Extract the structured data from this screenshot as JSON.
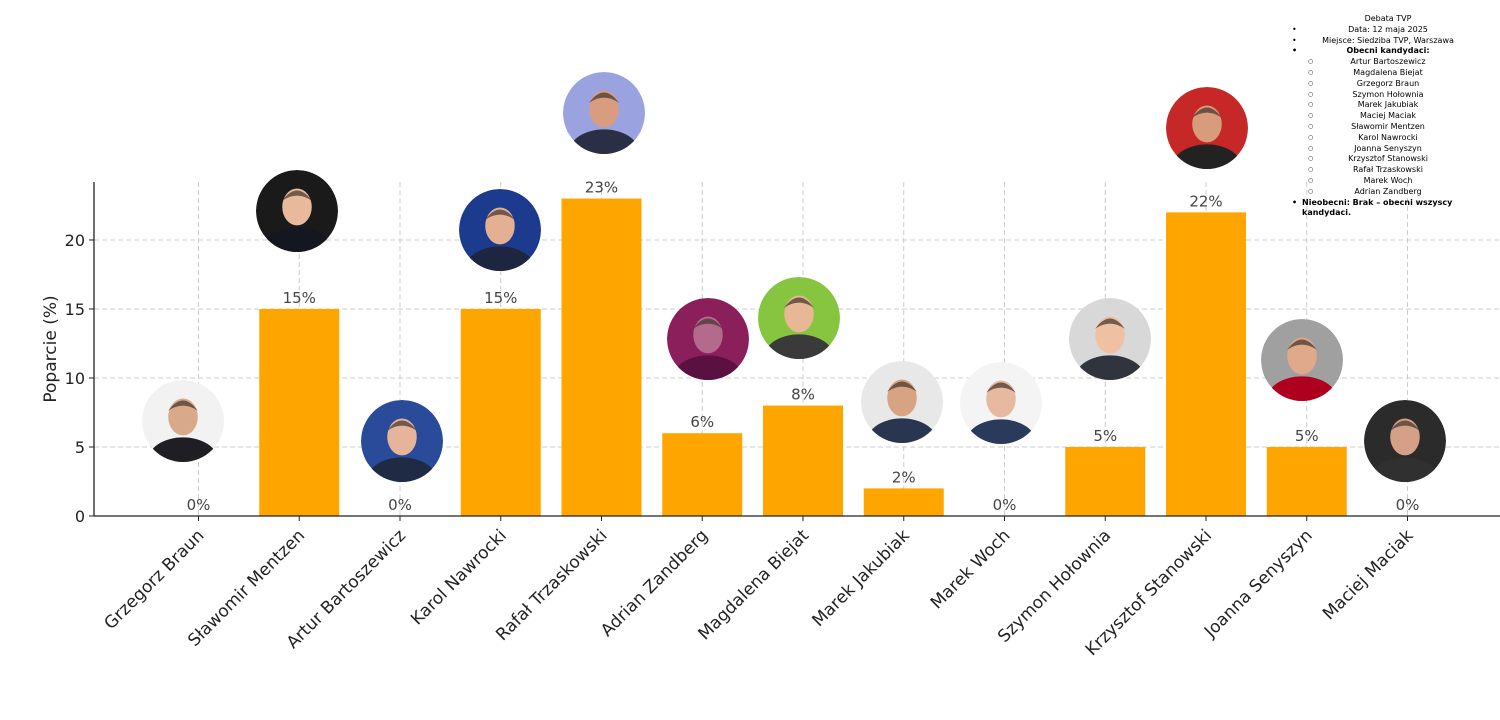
{
  "info_box": {
    "title": "Debata TVP",
    "date": "Data: 12 maja 2025",
    "place": "Miejsce: Siedziba TVP, Warszawa",
    "present_label": "Obecni kandydaci:",
    "present": [
      "Artur Bartoszewicz",
      "Magdalena Biejat",
      "Grzegorz Braun",
      "Szymon Hołownia",
      "Marek Jakubiak",
      "Maciej Maciak",
      "Sławomir Mentzen",
      "Karol Nawrocki",
      "Joanna Senyszyn",
      "Krzysztof Stanowski",
      "Rafał Trzaskowski",
      "Marek Woch",
      "Adrian Zandberg"
    ],
    "absent": "Nieobecni: Brak – obecni wszyscy kandydaci."
  },
  "chart_data": {
    "type": "bar",
    "categories": [
      "Grzegorz Braun",
      "Sławomir Mentzen",
      "Artur Bartoszewicz",
      "Karol Nawrocki",
      "Rafał Trzaskowski",
      "Adrian Zandberg",
      "Magdalena Biejat",
      "Marek Jakubiak",
      "Marek Woch",
      "Szymon Hołownia",
      "Krzysztof Stanowski",
      "Joanna Senyszyn",
      "Maciej Maciak"
    ],
    "values": [
      0,
      15,
      0,
      15,
      23,
      6,
      8,
      2,
      0,
      5,
      22,
      5,
      0
    ],
    "value_labels": [
      "0%",
      "15%",
      "0%",
      "15%",
      "23%",
      "6%",
      "8%",
      "2%",
      "0%",
      "5%",
      "22%",
      "5%",
      "0%"
    ],
    "ylabel": "Poparcie (%)",
    "xlabel": "",
    "ylim": [
      0,
      24.2
    ],
    "yticks": [
      0,
      5,
      10,
      15,
      20
    ],
    "grid": true,
    "bar_color": "#FFA500",
    "avatar_icons": [
      "avatar-braun",
      "avatar-mentzen",
      "avatar-bartoszewicz",
      "avatar-nawrocki",
      "avatar-trzaskowski",
      "avatar-zandberg",
      "avatar-biejat",
      "avatar-jakubiak",
      "avatar-woch",
      "avatar-holownia",
      "avatar-stanowski",
      "avatar-senyszyn",
      "avatar-maciak"
    ]
  }
}
